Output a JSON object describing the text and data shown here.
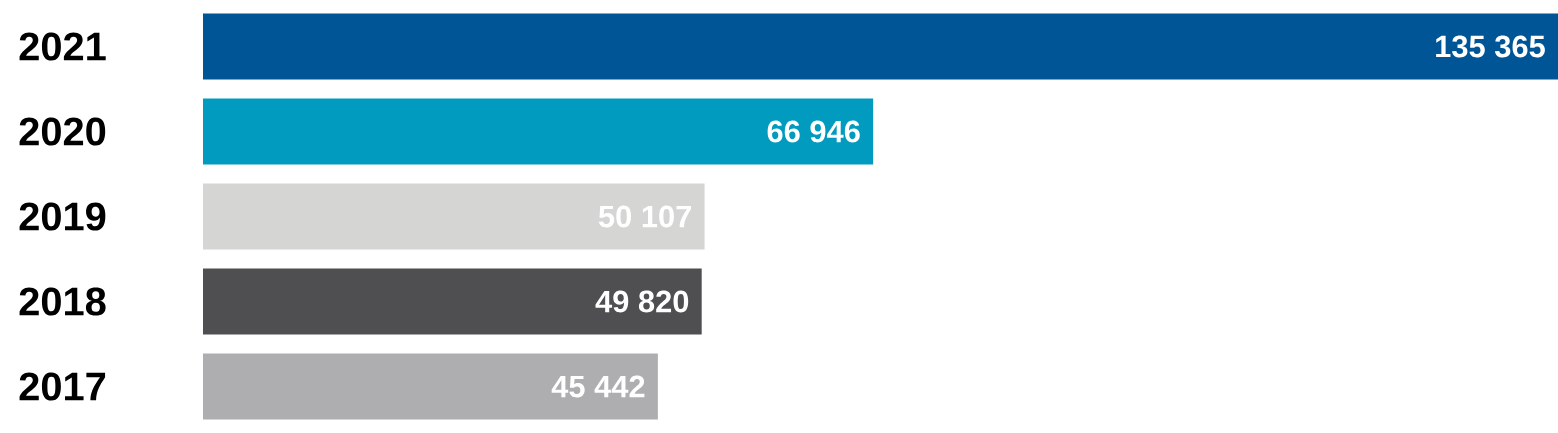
{
  "chart_data": {
    "type": "bar",
    "orientation": "horizontal",
    "categories": [
      "2021",
      "2020",
      "2019",
      "2018",
      "2017"
    ],
    "values": [
      135365,
      66946,
      50107,
      49820,
      45442
    ],
    "colors": [
      "#005596",
      "#009bbf",
      "#d5d5d3",
      "#4f4f51",
      "#aeaeb0"
    ],
    "value_labels": [
      "135 365",
      "66 946",
      "50 107",
      "49 820",
      "45 442"
    ]
  }
}
